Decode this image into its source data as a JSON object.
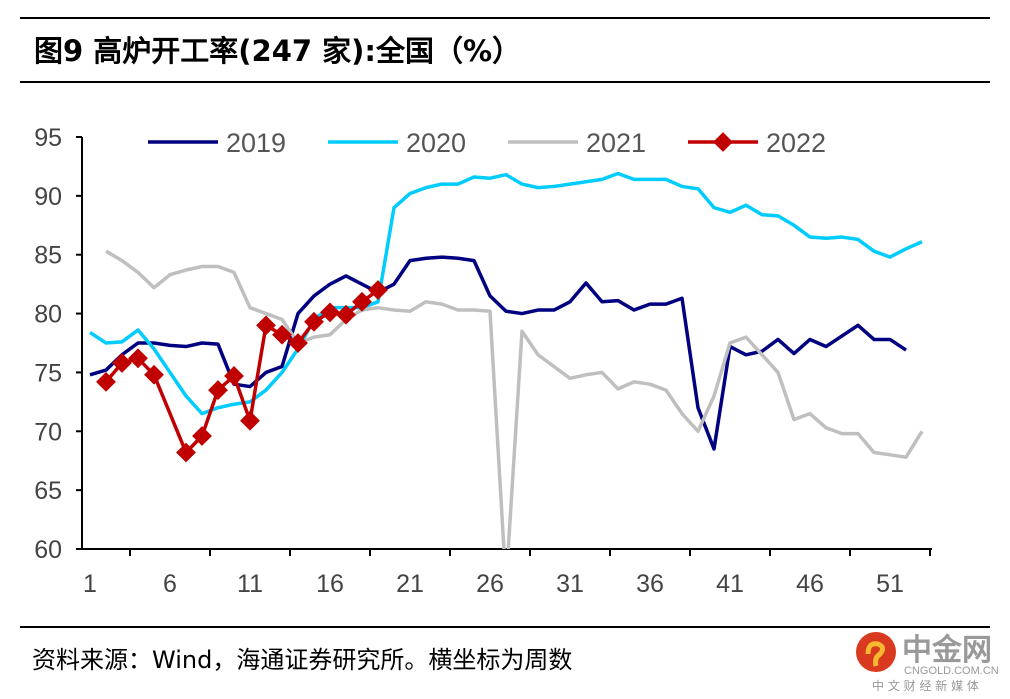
{
  "title": "图9   高炉开工率(247 家):全国（%）",
  "source": "资料来源：Wind，海通证券研究所。横坐标为周数",
  "logo": {
    "name": "中金网",
    "domain": "CNGOLD.COM.CN",
    "tagline": "中 文 财 经 新 媒 体"
  },
  "chart_data": {
    "type": "line",
    "xlabel": "",
    "ylabel": "",
    "ylim": [
      60,
      95
    ],
    "xlim": [
      1,
      53
    ],
    "yticks": [
      "60",
      "65",
      "70",
      "75",
      "80",
      "85",
      "90",
      "95"
    ],
    "xticks": [
      "1",
      "6",
      "11",
      "16",
      "21",
      "26",
      "31",
      "36",
      "41",
      "46",
      "51"
    ],
    "legend_position": "top",
    "series": [
      {
        "name": "2019",
        "color": "#000080",
        "start_week": 1,
        "marker": false,
        "values": [
          74.8,
          75.2,
          76.5,
          77.5,
          77.5,
          77.3,
          77.2,
          77.5,
          77.4,
          74,
          73.8,
          75,
          75.5,
          80,
          81.5,
          82.5,
          83.2,
          82.5,
          81.8,
          82.5,
          84.5,
          84.7,
          84.8,
          84.7,
          84.5,
          81.5,
          80.2,
          80,
          80.3,
          80.3,
          81,
          82.6,
          81,
          81.1,
          80.3,
          80.8,
          80.8,
          81.3,
          72,
          68.5,
          77.2,
          76.5,
          76.8,
          77.8,
          76.6,
          77.8,
          77.2,
          78.1,
          79,
          77.8,
          77.8,
          76.9
        ]
      },
      {
        "name": "2020",
        "color": "#00CCFF",
        "start_week": 1,
        "marker": false,
        "values": [
          78.4,
          77.5,
          77.6,
          78.6,
          77,
          75,
          73,
          71.5,
          72,
          72.3,
          72.5,
          73.5,
          75,
          77,
          79.5,
          80.5,
          80.5,
          80.5,
          81,
          89,
          90.2,
          90.7,
          91,
          91,
          91.6,
          91.5,
          91.8,
          91,
          90.7,
          90.8,
          91,
          91.2,
          91.4,
          91.9,
          91.4,
          91.4,
          91.4,
          90.8,
          90.6,
          89,
          88.6,
          89.2,
          88.4,
          88.3,
          87.5,
          86.5,
          86.4,
          86.5,
          86.3,
          85.3,
          84.8,
          85.5,
          86.1
        ]
      },
      {
        "name": "2021",
        "color": "#BFBFBF",
        "start_week": 2,
        "marker": false,
        "values": [
          85.3,
          84.5,
          83.5,
          82.2,
          83.3,
          83.7,
          84,
          84,
          83.5,
          80.5,
          80,
          79.5,
          77.5,
          78,
          78.2,
          79.5,
          80.3,
          80.5,
          80.3,
          80.2,
          81,
          80.8,
          80.3,
          80.3,
          80.2,
          57,
          78.5,
          76.5,
          75.5,
          74.5,
          74.8,
          75,
          73.6,
          74.2,
          74,
          73.5,
          71.5,
          70,
          73,
          77.5,
          78,
          76.5,
          75,
          71,
          71.5,
          70.3,
          69.8,
          69.8,
          68.2,
          68,
          67.8,
          70
        ]
      },
      {
        "name": "2022",
        "color": "#C00000",
        "start_week": 2,
        "marker": true,
        "values": [
          74.2,
          75.8,
          76.2,
          74.8,
          null,
          68.2,
          69.6,
          73.5,
          74.7,
          70.9,
          79,
          78.2,
          77.5,
          79.3,
          80.1,
          79.9,
          81,
          82
        ]
      }
    ]
  }
}
